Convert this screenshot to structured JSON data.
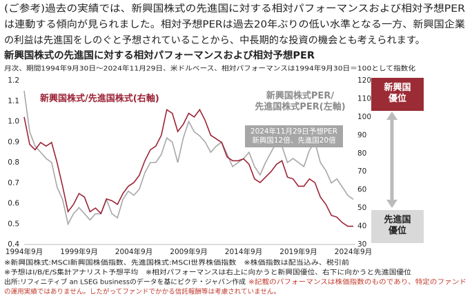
{
  "intro": [
    "(ご参考)過去の実績では、新興国株式の先進国に対する相対パフォーマンスおよび相対予想PER",
    "は連動する傾向が見られました。相対予想PERは過去20年ぶりの低い水準となる一方、新興国企業",
    "の利益は先進国をしのぐと予想されていることから、中長期的な投資の機会とも考えられます。"
  ],
  "chart_data": {
    "type": "line",
    "title": "新興国株式の先進国に対する相対パフォーマンスおよび相対予想PER",
    "subtitle": "月次、期間1994年9月30日～2024年11月29日、米ドルベース、相対パフォーマンスは1994年9月30日＝100として指数化",
    "categories": [
      "1994年9月",
      null,
      null,
      null,
      null,
      null,
      null,
      null,
      null,
      null,
      "1999年9月",
      null,
      null,
      null,
      null,
      null,
      null,
      null,
      null,
      null,
      "2004年9月",
      null,
      null,
      null,
      null,
      null,
      null,
      null,
      null,
      null,
      "2009年9月",
      null,
      null,
      null,
      null,
      null,
      null,
      null,
      null,
      null,
      "2014年9月",
      null,
      null,
      null,
      null,
      null,
      null,
      null,
      null,
      null,
      "2019年9月",
      null,
      null,
      null,
      null,
      null,
      null,
      null,
      null,
      null,
      "2024年9月"
    ],
    "series": [
      {
        "name": "新興国株式PER/\n先進国株式PER(左軸)",
        "color": "#a6a6a6",
        "axis": "y",
        "values": [
          1.15,
          0.95,
          0.88,
          0.85,
          0.82,
          0.8,
          0.68,
          0.62,
          0.5,
          0.55,
          0.58,
          0.55,
          0.52,
          0.55,
          0.55,
          0.62,
          0.55,
          0.53,
          0.62,
          0.66,
          0.64,
          0.67,
          0.75,
          0.8,
          0.8,
          0.84,
          0.92,
          0.9,
          0.8,
          0.92,
          1.0,
          0.95,
          0.93,
          0.9,
          0.85,
          0.88,
          0.9,
          0.84,
          0.78,
          0.8,
          0.82,
          0.85,
          0.78,
          0.74,
          0.8,
          0.85,
          0.9,
          0.88,
          0.8,
          0.82,
          0.8,
          0.78,
          0.86,
          0.9,
          0.8,
          0.76,
          0.7,
          0.72,
          0.68,
          0.64,
          0.62
        ]
      },
      {
        "name": "新興国株式/先進国株式(右軸)",
        "color": "#9b2335",
        "axis": "y2",
        "values": [
          100,
          85,
          82,
          86,
          84,
          86,
          75,
          62,
          48,
          52,
          58,
          56,
          48,
          50,
          47,
          55,
          54,
          52,
          58,
          62,
          64,
          68,
          76,
          82,
          84,
          90,
          104,
          102,
          92,
          96,
          102,
          100,
          104,
          98,
          90,
          88,
          86,
          78,
          76,
          76,
          77,
          74,
          66,
          64,
          67,
          70,
          74,
          76,
          67,
          66,
          62,
          62,
          66,
          64,
          56,
          52,
          46,
          45,
          42,
          40,
          40
        ]
      }
    ],
    "ylim": [
      0.4,
      1.2
    ],
    "yticks": [
      0.4,
      0.5,
      0.6,
      0.7,
      0.8,
      0.9,
      {
        "value": 1,
        "label": "1.0"
      },
      1.1,
      1.2
    ],
    "y2lim": [
      30,
      120
    ],
    "y2ticks": [
      30,
      40,
      50,
      60,
      70,
      80,
      90,
      100,
      110,
      120
    ],
    "grid": false,
    "callout": "2024年11月29日予想PER\n新興国12倍、先進国20倍",
    "top_box": "新興国\n優位",
    "bottom_box": "先進国\n優位",
    "top_box_color": "#9b2b35",
    "bottom_box_color": "#d9d9d9"
  },
  "notes": [
    "※新興国株式:MSCI新興国株価指数、先進国株式:MSCI世界株価指数　※株価指数は配当込み、税引前",
    "※予想はI/B/E/S集計アナリスト予想平均　※相対パフォーマンスは右上に向かうと新興国優位、右下に向かうと先進国優位",
    "出所:リフィニティブ an LSEG businessのデータを基にピクテ・ジャパン作成"
  ],
  "disclaimer": [
    "※記載のパフォーマンスは株価指数のものであり、特定のファンド",
    "の運用実績ではありません。したがってファンドでかかる信託報酬等は考慮されていません。"
  ]
}
